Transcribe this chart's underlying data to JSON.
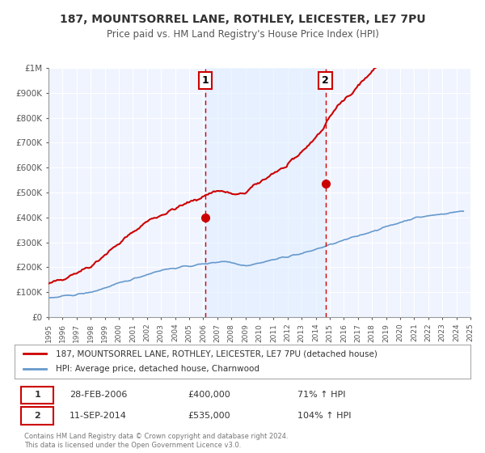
{
  "title": "187, MOUNTSORREL LANE, ROTHLEY, LEICESTER, LE7 7PU",
  "subtitle": "Price paid vs. HM Land Registry's House Price Index (HPI)",
  "legend_label_red": "187, MOUNTSORREL LANE, ROTHLEY, LEICESTER, LE7 7PU (detached house)",
  "legend_label_blue": "HPI: Average price, detached house, Charnwood",
  "annotation1_label": "1",
  "annotation1_date": "28-FEB-2006",
  "annotation1_price": "£400,000",
  "annotation1_hpi": "71% ↑ HPI",
  "annotation1_year": 2006.15,
  "annotation1_value": 400000,
  "annotation2_label": "2",
  "annotation2_date": "11-SEP-2014",
  "annotation2_price": "£535,000",
  "annotation2_hpi": "104% ↑ HPI",
  "annotation2_year": 2014.69,
  "annotation2_value": 535000,
  "footer1": "Contains HM Land Registry data © Crown copyright and database right 2024.",
  "footer2": "This data is licensed under the Open Government Licence v3.0.",
  "bg_color": "#ffffff",
  "plot_bg_color": "#f0f4ff",
  "grid_color": "#ffffff",
  "red_line_color": "#cc0000",
  "blue_line_color": "#6699cc",
  "vline_color": "#cc0000",
  "shade_color": "#ddeeff",
  "ylim_max": 1000000,
  "yticks": [
    0,
    100000,
    200000,
    300000,
    400000,
    500000,
    600000,
    700000,
    800000,
    900000,
    1000000
  ],
  "ytick_labels": [
    "£0",
    "£100K",
    "£200K",
    "£300K",
    "£400K",
    "£500K",
    "£600K",
    "£700K",
    "£800K",
    "£900K",
    "£1M"
  ],
  "xmin": 1995,
  "xmax": 2025
}
